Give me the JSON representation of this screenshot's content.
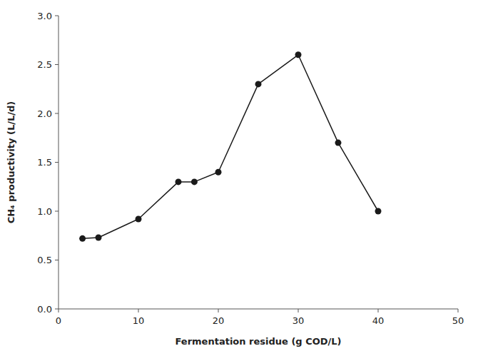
{
  "chart_data": {
    "type": "line",
    "x": [
      3,
      5,
      10,
      15,
      17,
      20,
      25,
      30,
      35,
      40
    ],
    "values": [
      0.72,
      0.73,
      0.92,
      1.3,
      1.3,
      1.4,
      2.3,
      2.6,
      1.7,
      1.0
    ],
    "xlabel": "Fermentation residue (g COD/L)",
    "ylabel": "CH₄ productivity (L/L/d)",
    "xlim": [
      0,
      50
    ],
    "ylim": [
      0.0,
      3.0
    ],
    "xticks": [
      0,
      10,
      20,
      30,
      40,
      50
    ],
    "yticks": [
      {
        "value": 0.0,
        "label": "0.0"
      },
      0.5,
      {
        "value": 1.0,
        "label": "1.0"
      },
      1.5,
      {
        "value": 2.0,
        "label": "2.0"
      },
      2.5,
      {
        "value": 3.0,
        "label": "3.0"
      }
    ],
    "color": "#1a1a1a",
    "marker": "circle",
    "grid": false
  }
}
